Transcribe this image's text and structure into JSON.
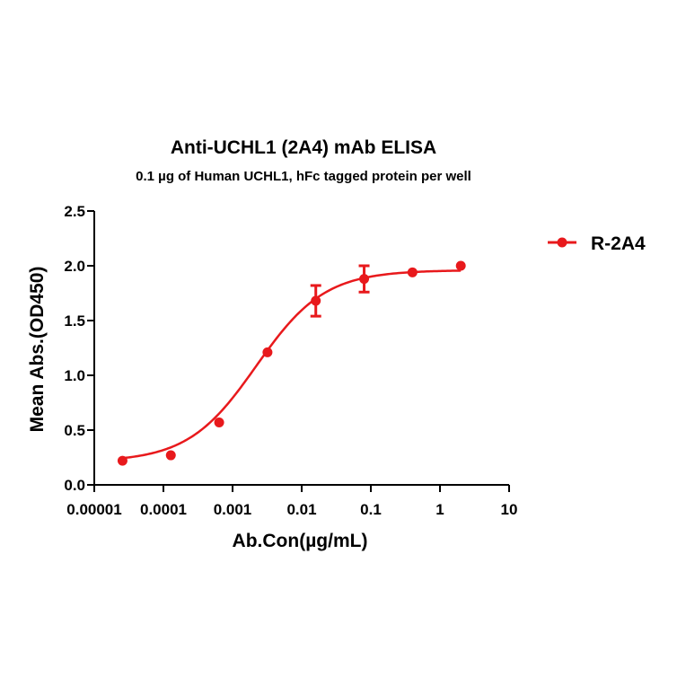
{
  "chart_data": {
    "type": "scatter",
    "title": "Anti-UCHL1 (2A4) mAb ELISA",
    "subtitle": "0.1 µg of Human UCHL1, hFc tagged protein per well",
    "xlabel": "Ab.Con(µg/mL)",
    "ylabel": "Mean Abs.(OD450)",
    "x_scale": "log",
    "xlim": [
      1e-05,
      10
    ],
    "ylim": [
      0,
      2.5
    ],
    "x_ticks": [
      1e-05,
      0.0001,
      0.001,
      0.01,
      0.1,
      1,
      10
    ],
    "x_tick_labels": [
      "0.00001",
      "0.0001",
      "0.001",
      "0.01",
      "0.1",
      "1",
      "10"
    ],
    "y_ticks": [
      0,
      0.5,
      1.0,
      1.5,
      2.0,
      2.5
    ],
    "y_tick_labels": [
      "0.0",
      "0.5",
      "1.0",
      "1.5",
      "2.0",
      "2.5"
    ],
    "legend_position": "top-right",
    "color": "#e8191c",
    "series": [
      {
        "name": "R-2A4",
        "x": [
          2.56e-05,
          0.000128,
          0.00064,
          0.0032,
          0.016,
          0.08,
          0.4,
          2
        ],
        "y": [
          0.22,
          0.27,
          0.57,
          1.21,
          1.68,
          1.88,
          1.94,
          2.0
        ],
        "error": [
          0,
          0,
          0,
          0,
          0.14,
          0.12,
          0,
          0
        ],
        "fit": "4PL"
      }
    ]
  }
}
